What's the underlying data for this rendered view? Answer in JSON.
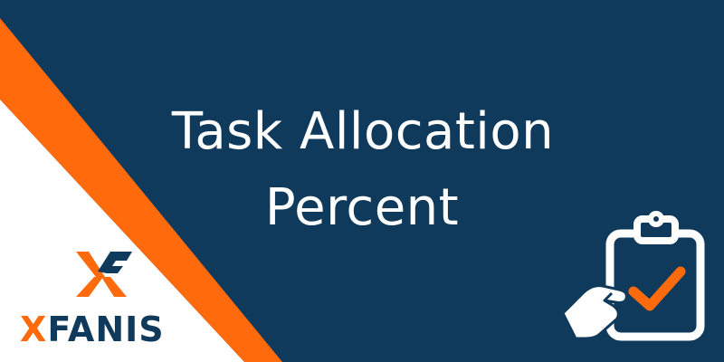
{
  "title": {
    "line1": "Task Allocation",
    "line2": "Percent"
  },
  "brand": {
    "name_first_letter": "X",
    "name_rest": "FANIS",
    "logo_icon": "xf-monogram-icon"
  },
  "icons": {
    "main": "clipboard-check-hand-icon"
  },
  "colors": {
    "background": "#0f3a5c",
    "accent": "#ff6a0d",
    "white": "#ffffff"
  }
}
